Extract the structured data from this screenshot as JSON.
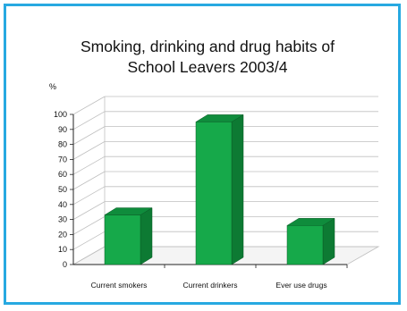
{
  "chart_data": {
    "type": "bar",
    "title_lines": [
      "Smoking, drinking and drug habits of",
      "School Leavers 2003/4"
    ],
    "ylabel": "%",
    "xlabel": "",
    "categories": [
      "Current smokers",
      "Current drinkers",
      "Ever use drugs"
    ],
    "values": [
      33,
      95,
      26
    ],
    "ylim": [
      0,
      100
    ],
    "yticks": [
      0,
      10,
      20,
      30,
      40,
      50,
      60,
      70,
      80,
      90,
      100
    ],
    "grid": true,
    "three_d": true,
    "legend": "none",
    "colors": {
      "bar_front": "#16a94a",
      "bar_side": "#0d7a33",
      "bar_top": "#0f8c3c",
      "frame": "#27a9e1",
      "grid": "#bfbfbf"
    }
  }
}
